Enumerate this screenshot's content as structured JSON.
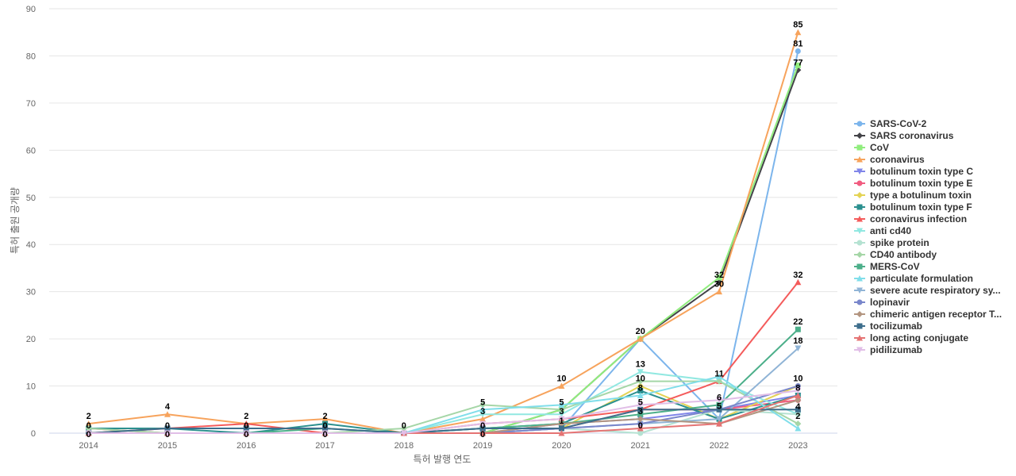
{
  "chart_data": {
    "type": "line",
    "title": "",
    "xlabel": "특허 발행 연도",
    "ylabel": "특허 출원 공개량",
    "x": [
      "2014",
      "2015",
      "2016",
      "2017",
      "2018",
      "2019",
      "2020",
      "2021",
      "2022",
      "2023"
    ],
    "ylim": [
      0,
      90
    ],
    "yticks": [
      0,
      10,
      20,
      30,
      40,
      50,
      60,
      70,
      80,
      90
    ],
    "grid": true,
    "legend_position": "right",
    "series": [
      {
        "name": "SARS-CoV-2",
        "color": "#7cb5ec",
        "marker": "circle",
        "values": [
          0,
          0,
          0,
          0,
          0,
          0,
          1,
          20,
          3,
          81
        ]
      },
      {
        "name": "SARS coronavirus",
        "color": "#434348",
        "marker": "diamond",
        "values": [
          0,
          0,
          0,
          0,
          0,
          0,
          5,
          20,
          32,
          77
        ]
      },
      {
        "name": "CoV",
        "color": "#90ed7d",
        "marker": "square",
        "values": [
          0,
          0,
          0,
          0,
          0,
          0,
          5,
          20,
          33,
          78
        ]
      },
      {
        "name": "coronavirus",
        "color": "#f7a35c",
        "marker": "triangle",
        "values": [
          2,
          4,
          2,
          3,
          0,
          3,
          10,
          20,
          30,
          85
        ]
      },
      {
        "name": "botulinum toxin type C",
        "color": "#8085e9",
        "marker": "triangle-down",
        "values": [
          0,
          0,
          0,
          0,
          0,
          0,
          2,
          3,
          5,
          8
        ]
      },
      {
        "name": "botulinum toxin type E",
        "color": "#f15c80",
        "marker": "circle",
        "values": [
          1,
          0,
          0,
          0,
          0,
          0,
          1,
          5,
          5,
          7
        ]
      },
      {
        "name": "type a botulinum toxin",
        "color": "#e4d354",
        "marker": "diamond",
        "values": [
          0,
          0,
          0,
          0,
          0,
          0,
          1,
          10,
          3,
          10
        ]
      },
      {
        "name": "botulinum toxin type F",
        "color": "#2b908f",
        "marker": "square",
        "values": [
          1,
          1,
          0,
          2,
          0,
          1,
          2,
          9,
          3,
          8
        ]
      },
      {
        "name": "coronavirus infection",
        "color": "#f45b5b",
        "marker": "triangle",
        "values": [
          0,
          1,
          2,
          0,
          0,
          2,
          3,
          5,
          11,
          32
        ]
      },
      {
        "name": "anti cd40",
        "color": "#91e8e1",
        "marker": "triangle-down",
        "values": [
          0,
          0,
          0,
          0,
          0,
          4,
          4,
          13,
          11,
          4
        ]
      },
      {
        "name": "spike protein",
        "color": "#b5e2d2",
        "marker": "circle",
        "values": [
          0,
          0,
          0,
          0,
          0,
          0,
          1,
          0,
          5,
          4
        ]
      },
      {
        "name": "CD40 antibody",
        "color": "#a5d6a7",
        "marker": "diamond",
        "values": [
          1,
          0,
          0,
          0,
          1,
          6,
          5,
          11,
          11,
          2
        ]
      },
      {
        "name": "MERS-CoV",
        "color": "#4caf8a",
        "marker": "square",
        "values": [
          0,
          0,
          0,
          1,
          0,
          1,
          2,
          4,
          6,
          22
        ]
      },
      {
        "name": "particulate formulation",
        "color": "#80deea",
        "marker": "triangle",
        "values": [
          0,
          0,
          0,
          0,
          0,
          5,
          6,
          8,
          12,
          1
        ]
      },
      {
        "name": "severe acute respiratory sy...",
        "color": "#90b4d6",
        "marker": "triangle-down",
        "values": [
          0,
          0,
          0,
          0,
          0,
          0,
          1,
          2,
          3,
          18
        ]
      },
      {
        "name": "lopinavir",
        "color": "#7986cb",
        "marker": "circle",
        "values": [
          0,
          0,
          0,
          0,
          0,
          0,
          1,
          2,
          5,
          10
        ]
      },
      {
        "name": "chimeric antigen receptor T...",
        "color": "#b39580",
        "marker": "diamond",
        "values": [
          0,
          0,
          0,
          0,
          0,
          0,
          2,
          3,
          2,
          7
        ]
      },
      {
        "name": "tocilizumab",
        "color": "#3d6e8c",
        "marker": "square",
        "values": [
          0,
          1,
          1,
          1,
          0,
          1,
          1,
          5,
          5,
          5
        ]
      },
      {
        "name": "long acting conjugate",
        "color": "#e57373",
        "marker": "triangle",
        "values": [
          0,
          0,
          0,
          0,
          0,
          0,
          0,
          1,
          2,
          8
        ]
      },
      {
        "name": "pidilizumab",
        "color": "#e1bee7",
        "marker": "triangle-down",
        "values": [
          0,
          0,
          0,
          0,
          0,
          2,
          3,
          6,
          7,
          9
        ]
      }
    ],
    "data_labels": [
      {
        "x": "2014",
        "values": [
          "2",
          "0",
          "0"
        ]
      },
      {
        "x": "2015",
        "values": [
          "4",
          "0",
          "0"
        ]
      },
      {
        "x": "2016",
        "values": [
          "2",
          "0",
          "0"
        ]
      },
      {
        "x": "2017",
        "values": [
          "2",
          "0",
          "0"
        ]
      },
      {
        "x": "2018",
        "values": [
          "0"
        ]
      },
      {
        "x": "2019",
        "values": [
          "5",
          "3",
          "0",
          "0"
        ]
      },
      {
        "x": "2020",
        "values": [
          "10",
          "5",
          "3",
          "1"
        ]
      },
      {
        "x": "2021",
        "values": [
          "20",
          "13",
          "10",
          "8",
          "5",
          "3",
          "0"
        ]
      },
      {
        "x": "2022",
        "values": [
          "32",
          "30",
          "11",
          "6",
          "5"
        ]
      },
      {
        "x": "2023",
        "values": [
          "85",
          "81",
          "77",
          "32",
          "22",
          "18",
          "10",
          "8",
          "4",
          "2"
        ]
      }
    ]
  }
}
